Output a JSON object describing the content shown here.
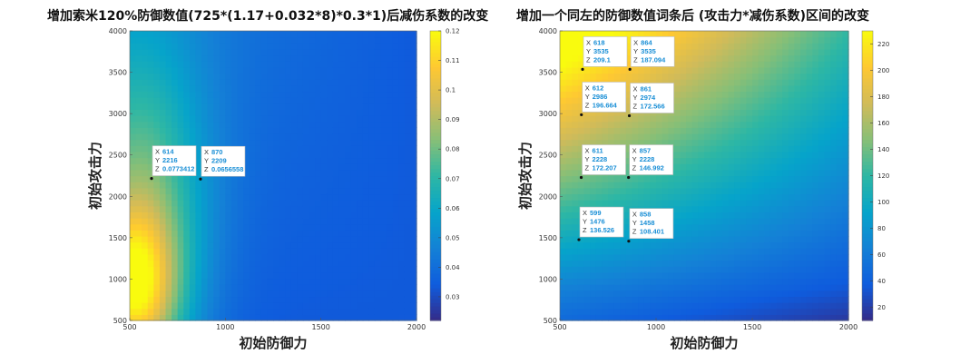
{
  "colors": {
    "parula": [
      "#352a87",
      "#0f5cdd",
      "#1481d6",
      "#06a4ca",
      "#2eb7a4",
      "#87bf77",
      "#d1bb59",
      "#fec832",
      "#f9fb0e"
    ]
  },
  "chart_data": [
    {
      "type": "heatmap",
      "title": "增加索米120%防御数值(725*(1.17+0.032*8)*0.3*1)后减伤系数的改变",
      "xlabel": "初始防御力",
      "ylabel": "初始攻击力",
      "xlim": [
        500,
        2000
      ],
      "ylim": [
        500,
        4000
      ],
      "xticks": [
        "500",
        "1000",
        "1500",
        "2000"
      ],
      "yticks": [
        "500",
        "1000",
        "1500",
        "2000",
        "2500",
        "3000",
        "3500",
        "4000"
      ],
      "colorbar": {
        "range": [
          0.022,
          0.12
        ],
        "ticks": [
          "0.03",
          "0.04",
          "0.05",
          "0.06",
          "0.07",
          "0.08",
          "0.09",
          "0.1",
          "0.11",
          "0.12"
        ]
      },
      "datatips": [
        {
          "x": "614",
          "y": "2216",
          "z": "0.0773412"
        },
        {
          "x": "870",
          "y": "2209",
          "z": "0.0656558"
        }
      ]
    },
    {
      "type": "heatmap",
      "title": "增加一个同左的防御数值词条后 (攻击力*减伤系数)区间的改变",
      "xlabel": "初始防御力",
      "ylabel": "初始攻击力",
      "xlim": [
        500,
        2000
      ],
      "ylim": [
        500,
        4000
      ],
      "xticks": [
        "500",
        "1000",
        "1500",
        "2000"
      ],
      "yticks": [
        "500",
        "1000",
        "1500",
        "2000",
        "2500",
        "3000",
        "3500",
        "4000"
      ],
      "colorbar": {
        "range": [
          10,
          230
        ],
        "ticks": [
          "20",
          "40",
          "60",
          "80",
          "100",
          "120",
          "140",
          "160",
          "180",
          "200",
          "220"
        ]
      },
      "datatips": [
        {
          "x": "618",
          "y": "3535",
          "z": "209.1"
        },
        {
          "x": "864",
          "y": "3535",
          "z": "187.094"
        },
        {
          "x": "612",
          "y": "2986",
          "z": "196.664"
        },
        {
          "x": "861",
          "y": "2974",
          "z": "172.566"
        },
        {
          "x": "611",
          "y": "2228",
          "z": "172.207"
        },
        {
          "x": "857",
          "y": "2228",
          "z": "146.992"
        },
        {
          "x": "599",
          "y": "1476",
          "z": "136.526"
        },
        {
          "x": "858",
          "y": "1458",
          "z": "108.401"
        }
      ]
    }
  ]
}
